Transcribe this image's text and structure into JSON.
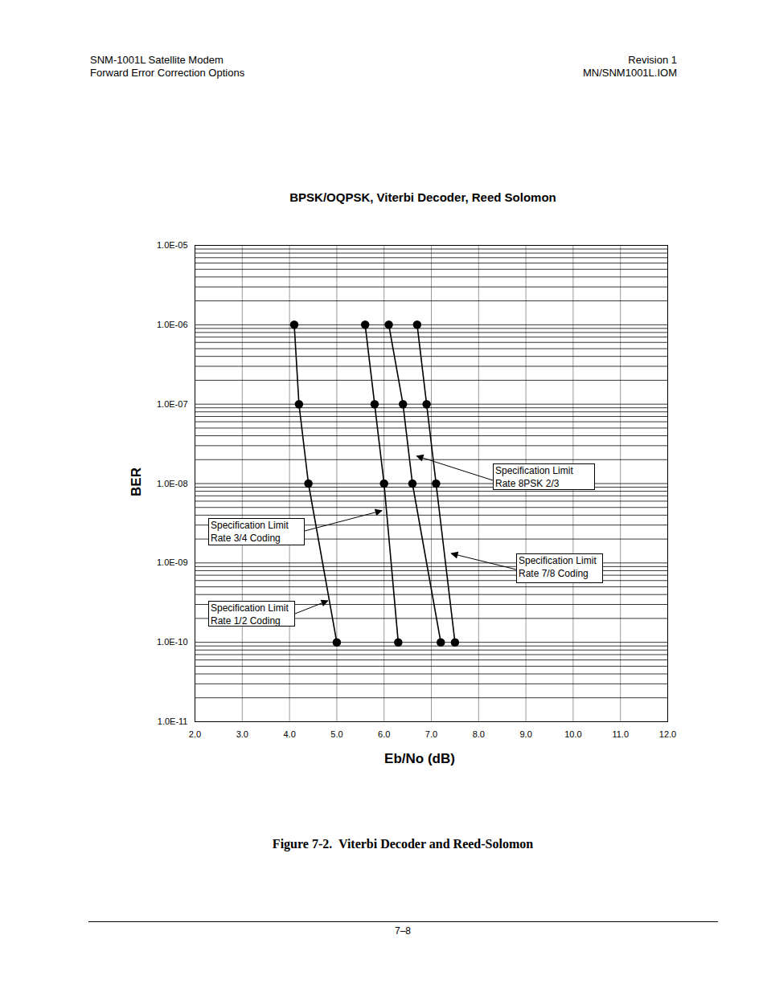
{
  "page": {
    "header_left": [
      "SNM-1001L Satellite Modem",
      "Forward Error Correction Options"
    ],
    "header_right": [
      "Revision 1",
      "MN/SNM1001L.IOM"
    ],
    "caption": "Figure 7-2.  Viterbi Decoder and Reed-Solomon",
    "footer": "7–8"
  },
  "chart_data": {
    "type": "line",
    "title": "BPSK/OQPSK, Viterbi Decoder, Reed Solomon",
    "x_label": "Eb/No (dB)",
    "y_label": "BER",
    "log": "y",
    "grid": true,
    "xlim": [
      2,
      12
    ],
    "xticks": [
      {
        "value": 2,
        "label": "2.0"
      },
      {
        "value": 3,
        "label": "3.0"
      },
      {
        "value": 4,
        "label": "4.0"
      },
      {
        "value": 5,
        "label": "5.0"
      },
      {
        "value": 6,
        "label": "6.0"
      },
      {
        "value": 7,
        "label": "7.0"
      },
      {
        "value": 8,
        "label": "8.0"
      },
      {
        "value": 9,
        "label": "9.0"
      },
      {
        "value": 10,
        "label": "10.0"
      },
      {
        "value": 11,
        "label": "11.0"
      },
      {
        "value": 12,
        "label": "12.0"
      }
    ],
    "ylim": [
      1e-11,
      1e-05
    ],
    "yticks": [
      {
        "value": 1e-11,
        "label": "1.0E-11"
      },
      {
        "value": 1e-10,
        "label": "1.0E-10"
      },
      {
        "value": 1e-09,
        "label": "1.0E-09"
      },
      {
        "value": 1e-08,
        "label": "1.0E-08"
      },
      {
        "value": 1e-07,
        "label": "1.0E-07"
      },
      {
        "value": 1e-06,
        "label": "1.0E-06"
      },
      {
        "value": 1e-05,
        "label": "1.0E-05"
      }
    ],
    "series": [
      {
        "name": "Rate 1/2 Coding",
        "color": "#000000",
        "marker": "circle",
        "line_style": "solid",
        "x": [
          4.1,
          4.2,
          4.4,
          5.0
        ],
        "values": [
          1e-06,
          1e-07,
          1e-08,
          1e-10
        ]
      },
      {
        "name": "Rate 3/4 Coding",
        "color": "#000000",
        "marker": "circle",
        "line_style": "solid",
        "x": [
          5.6,
          5.8,
          6.0,
          6.3
        ],
        "values": [
          1e-06,
          1e-07,
          1e-08,
          1e-10
        ]
      },
      {
        "name": "Rate 8PSK 2/3",
        "color": "#000000",
        "marker": "circle",
        "line_style": "solid",
        "x": [
          6.1,
          6.4,
          6.6,
          7.2
        ],
        "values": [
          1e-06,
          1e-07,
          1e-08,
          1e-10
        ]
      },
      {
        "name": "Rate 7/8 Coding",
        "color": "#000000",
        "marker": "circle",
        "line_style": "solid",
        "x": [
          6.7,
          6.9,
          7.1,
          7.5
        ],
        "values": [
          1e-06,
          1e-07,
          1e-08,
          1e-10
        ]
      }
    ],
    "annotations": [
      {
        "text": [
          "Specification Limit",
          "Rate 8PSK 2/3"
        ],
        "x": 6.7,
        "y": 2.2e-08
      },
      {
        "text": [
          "Specification Limit",
          "Rate 3/4 Coding"
        ],
        "x": 5.96,
        "y": 4.5e-09
      },
      {
        "text": [
          "Specification Limit",
          "Rate 7/8 Coding"
        ],
        "x": 7.43,
        "y": 1.3e-09
      },
      {
        "text": [
          "Specification Limit",
          "Rate 1/2 Coding"
        ],
        "x": 4.82,
        "y": 3.3e-10
      }
    ]
  }
}
